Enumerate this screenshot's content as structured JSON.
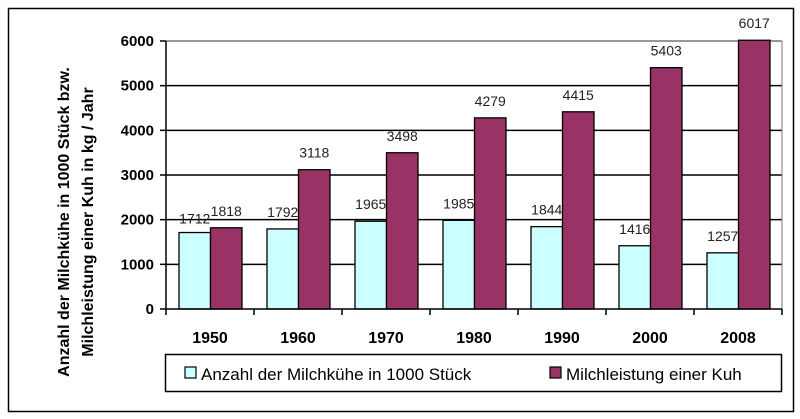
{
  "chart_data": {
    "type": "bar",
    "title": "",
    "xlabel": "",
    "ylabel_lines": [
      "Anzahl der Milchkühe in 1000 Stück bzw.",
      "Milchleistung einer Kuh in kg / Jahr"
    ],
    "categories": [
      "1950",
      "1960",
      "1970",
      "1980",
      "1990",
      "2000",
      "2008"
    ],
    "series": [
      {
        "name": "Anzahl der Milchkühe in 1000 Stück",
        "color": "#ccffff",
        "values": [
          1712,
          1792,
          1965,
          1985,
          1844,
          1416,
          1257
        ]
      },
      {
        "name": "Milchleistung einer Kuh",
        "color": "#993366",
        "values": [
          1818,
          3118,
          3498,
          4279,
          4415,
          5403,
          6017
        ]
      }
    ],
    "ylim": [
      0,
      6000
    ],
    "yticks": [
      "0",
      "1000",
      "2000",
      "3000",
      "4000",
      "5000",
      "6000"
    ],
    "grid": true,
    "legend_position": "bottom"
  }
}
